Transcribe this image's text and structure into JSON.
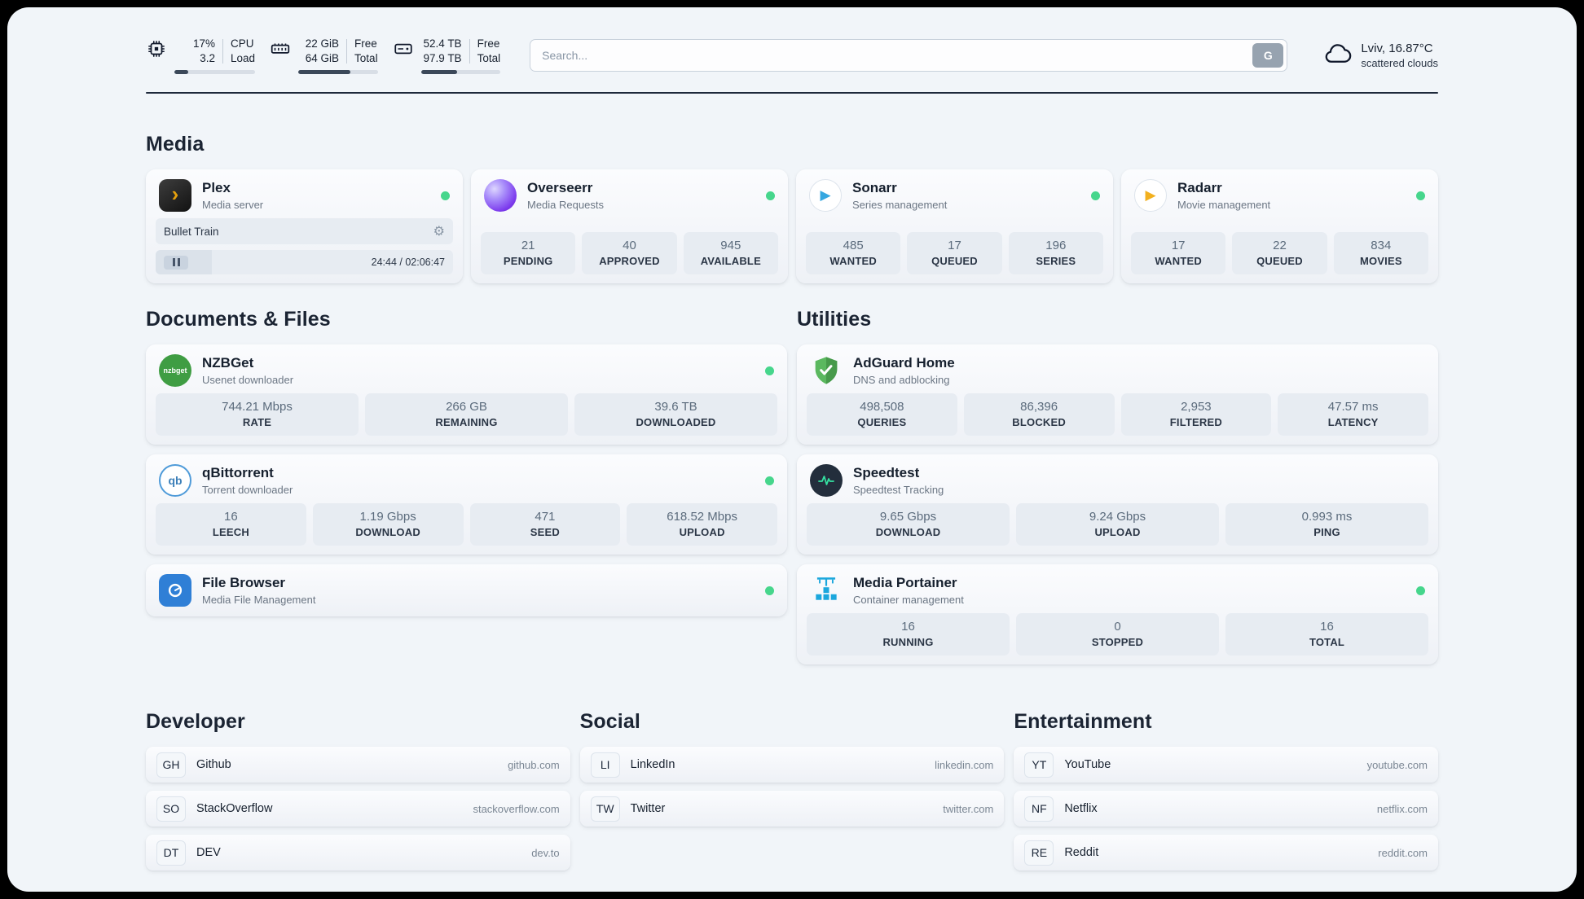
{
  "header": {
    "cpu": {
      "value_top": "17%",
      "value_bottom": "3.2",
      "label_top": "CPU",
      "label_bottom": "Load",
      "progress_percent": 17
    },
    "memory": {
      "value_top": "22 GiB",
      "value_bottom": "64 GiB",
      "label_top": "Free",
      "label_bottom": "Total",
      "progress_percent": 66
    },
    "disk": {
      "value_top": "52.4 TB",
      "value_bottom": "97.9 TB",
      "label_top": "Free",
      "label_bottom": "Total",
      "progress_percent": 46
    },
    "search": {
      "placeholder": "Search...",
      "button_label": "G"
    },
    "weather": {
      "location": "Lviv, 16.87°C",
      "condition": "scattered clouds"
    }
  },
  "media": {
    "title": "Media",
    "plex": {
      "name": "Plex",
      "subtitle": "Media server",
      "icon_glyph": "›",
      "gear_glyph": "⚙",
      "now_playing": "Bullet Train",
      "elapsed_total": "24:44 / 02:06:47",
      "progress_percent": 19
    },
    "overseerr": {
      "name": "Overseerr",
      "subtitle": "Media Requests",
      "stats": [
        {
          "value": "21",
          "label": "PENDING"
        },
        {
          "value": "40",
          "label": "APPROVED"
        },
        {
          "value": "945",
          "label": "AVAILABLE"
        }
      ]
    },
    "sonarr": {
      "name": "Sonarr",
      "subtitle": "Series management",
      "icon_glyph": "▶",
      "stats": [
        {
          "value": "485",
          "label": "WANTED"
        },
        {
          "value": "17",
          "label": "QUEUED"
        },
        {
          "value": "196",
          "label": "SERIES"
        }
      ]
    },
    "radarr": {
      "name": "Radarr",
      "subtitle": "Movie management",
      "icon_glyph": "▶",
      "stats": [
        {
          "value": "17",
          "label": "WANTED"
        },
        {
          "value": "22",
          "label": "QUEUED"
        },
        {
          "value": "834",
          "label": "MOVIES"
        }
      ]
    }
  },
  "documents": {
    "title": "Documents & Files",
    "nzbget": {
      "name": "NZBGet",
      "subtitle": "Usenet downloader",
      "icon_label": "nzbget",
      "stats": [
        {
          "value": "744.21 Mbps",
          "label": "RATE"
        },
        {
          "value": "266 GB",
          "label": "REMAINING"
        },
        {
          "value": "39.6 TB",
          "label": "DOWNLOADED"
        }
      ]
    },
    "qbittorrent": {
      "name": "qBittorrent",
      "subtitle": "Torrent downloader",
      "icon_label": "qb",
      "stats": [
        {
          "value": "16",
          "label": "LEECH"
        },
        {
          "value": "1.19 Gbps",
          "label": "DOWNLOAD"
        },
        {
          "value": "471",
          "label": "SEED"
        },
        {
          "value": "618.52 Mbps",
          "label": "UPLOAD"
        }
      ]
    },
    "filebrowser": {
      "name": "File Browser",
      "subtitle": "Media File Management"
    }
  },
  "utilities": {
    "title": "Utilities",
    "adguard": {
      "name": "AdGuard Home",
      "subtitle": "DNS and adblocking",
      "stats": [
        {
          "value": "498,508",
          "label": "QUERIES"
        },
        {
          "value": "86,396",
          "label": "BLOCKED"
        },
        {
          "value": "2,953",
          "label": "FILTERED"
        },
        {
          "value": "47.57 ms",
          "label": "LATENCY"
        }
      ]
    },
    "speedtest": {
      "name": "Speedtest",
      "subtitle": "Speedtest Tracking",
      "stats": [
        {
          "value": "9.65 Gbps",
          "label": "DOWNLOAD"
        },
        {
          "value": "9.24 Gbps",
          "label": "UPLOAD"
        },
        {
          "value": "0.993 ms",
          "label": "PING"
        }
      ]
    },
    "portainer": {
      "name": "Media Portainer",
      "subtitle": "Container management",
      "stats": [
        {
          "value": "16",
          "label": "RUNNING"
        },
        {
          "value": "0",
          "label": "STOPPED"
        },
        {
          "value": "16",
          "label": "TOTAL"
        }
      ]
    }
  },
  "developer": {
    "title": "Developer",
    "links": [
      {
        "abbr": "GH",
        "name": "Github",
        "url": "github.com"
      },
      {
        "abbr": "SO",
        "name": "StackOverflow",
        "url": "stackoverflow.com"
      },
      {
        "abbr": "DT",
        "name": "DEV",
        "url": "dev.to"
      }
    ]
  },
  "social": {
    "title": "Social",
    "links": [
      {
        "abbr": "LI",
        "name": "LinkedIn",
        "url": "linkedin.com"
      },
      {
        "abbr": "TW",
        "name": "Twitter",
        "url": "twitter.com"
      }
    ]
  },
  "entertainment": {
    "title": "Entertainment",
    "links": [
      {
        "abbr": "YT",
        "name": "YouTube",
        "url": "youtube.com"
      },
      {
        "abbr": "NF",
        "name": "Netflix",
        "url": "netflix.com"
      },
      {
        "abbr": "RE",
        "name": "Reddit",
        "url": "reddit.com"
      }
    ]
  },
  "colors": {
    "status_online": "#46d68c",
    "plex_accent": "#e5a00d",
    "sonarr_accent": "#35a7e0",
    "radarr_accent": "#f2b01e",
    "nzbget_accent": "#3f9d43",
    "qbittorrent_accent": "#4f9bd9",
    "filebrowser_accent": "#2f7fd6",
    "adguard_accent": "#4a9e4e",
    "speedtest_accent": "#35e0a1",
    "portainer_accent": "#1ba7dd"
  }
}
